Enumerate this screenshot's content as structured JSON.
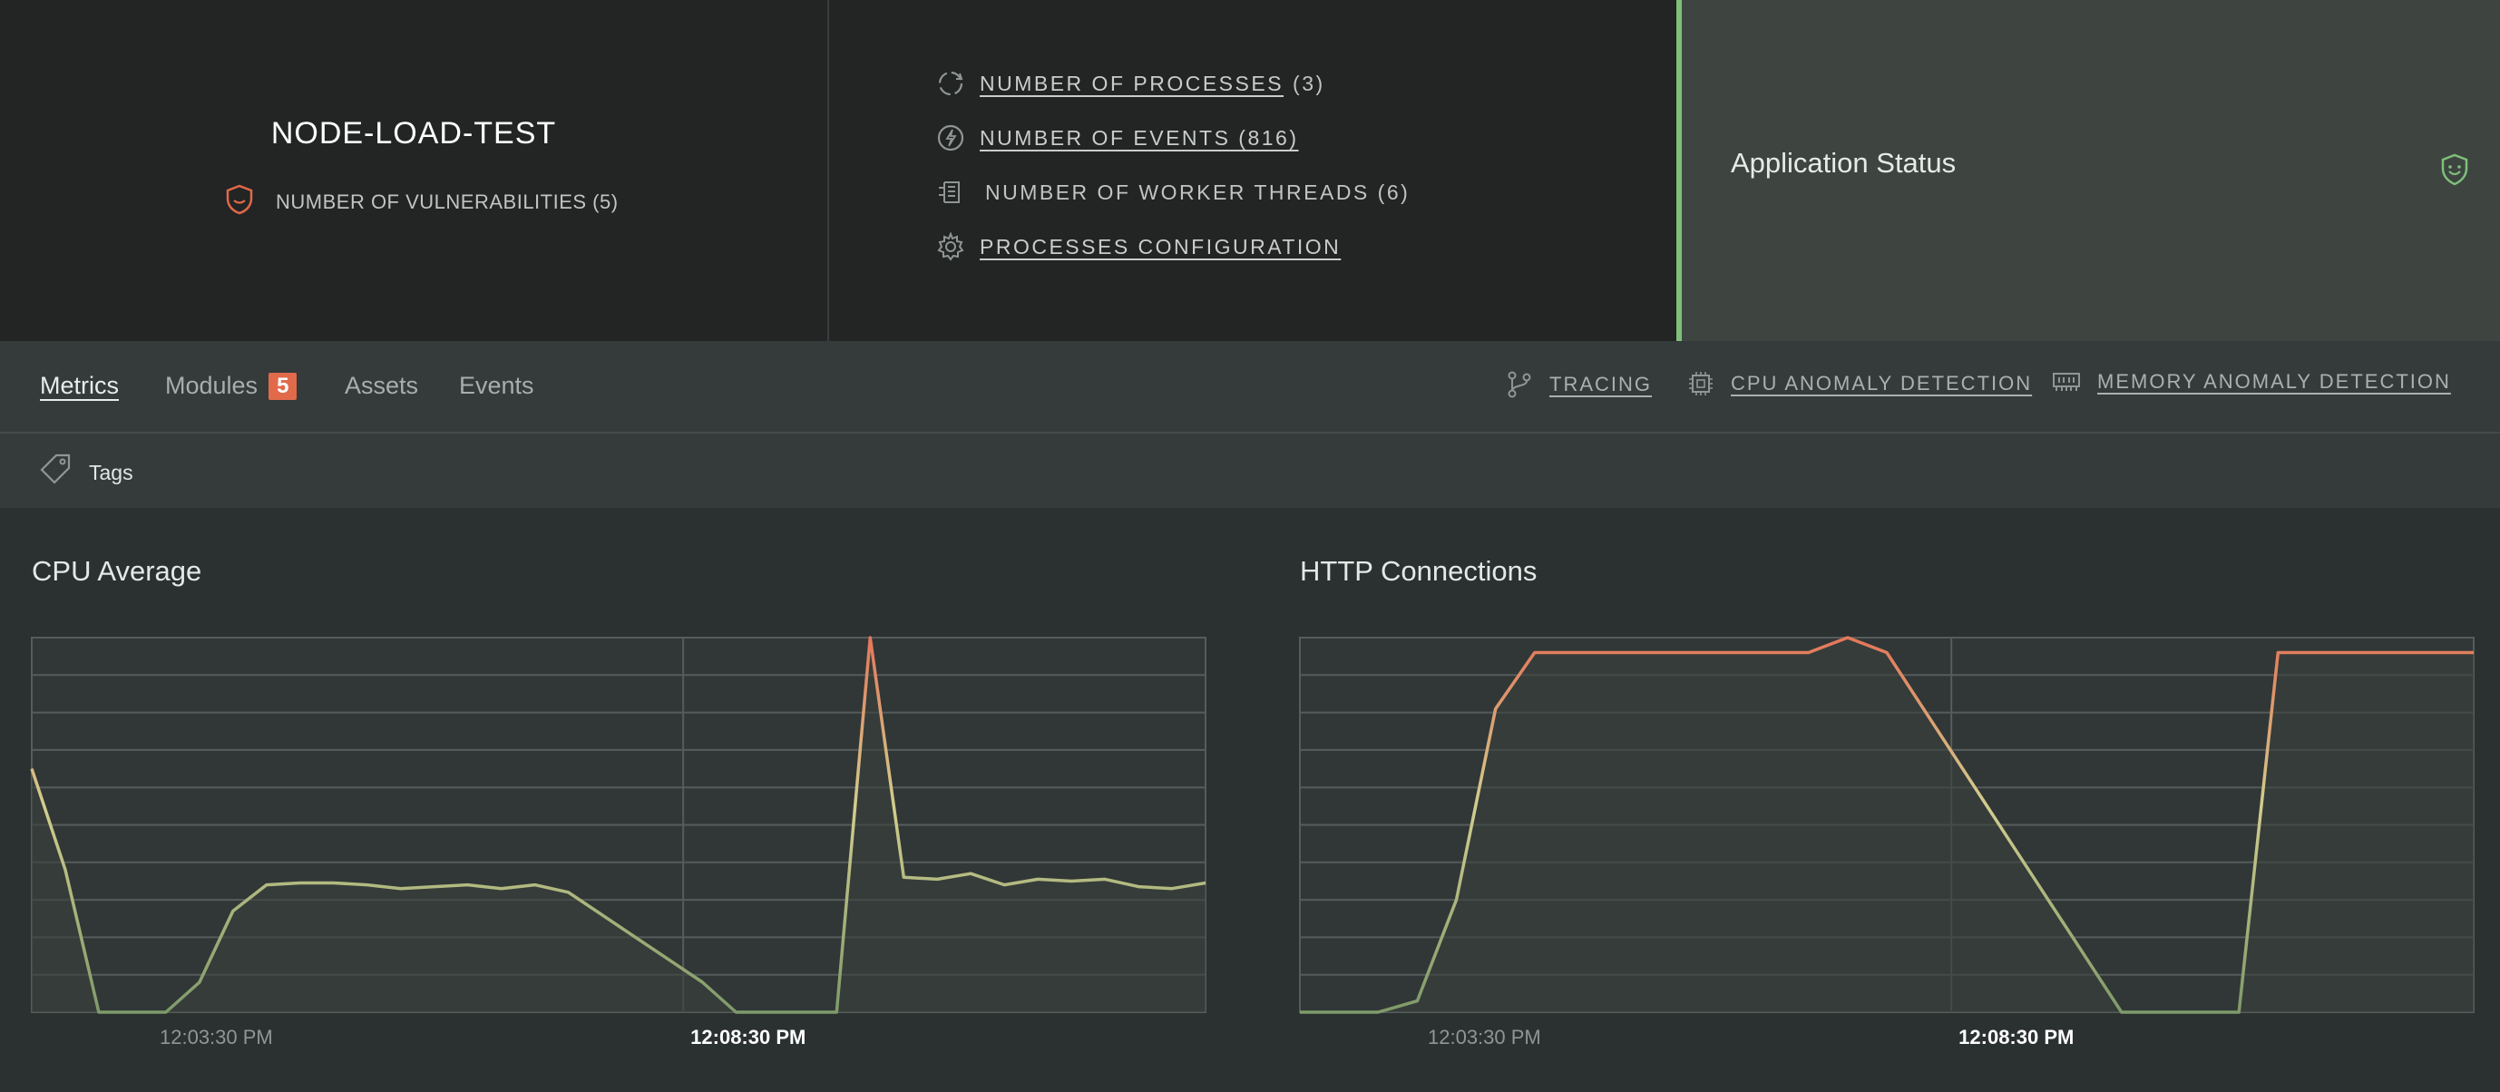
{
  "app": {
    "name": "NODE-LOAD-TEST",
    "vulnerabilities_label": "NUMBER OF VULNERABILITIES (5)"
  },
  "stats": [
    {
      "icon": "processes-icon",
      "label": "NUMBER OF PROCESSES",
      "count": "(3)",
      "link_count": false
    },
    {
      "icon": "lightning-icon",
      "label": "NUMBER OF EVENTS (816)",
      "count": "",
      "link_count": true
    },
    {
      "icon": "threads-icon",
      "label": "NUMBER OF WORKER THREADS (6)",
      "count": "",
      "link_count": false
    },
    {
      "icon": "gear-icon",
      "label": "PROCESSES CONFIGURATION",
      "count": "",
      "link_count": true
    }
  ],
  "status": {
    "title": "Application Status",
    "accent": "#7fbf7a",
    "icon": "shield-face-icon"
  },
  "tabs": [
    {
      "label": "Metrics",
      "active": true
    },
    {
      "label": "Modules",
      "badge": "5",
      "active": false
    },
    {
      "label": "Assets",
      "active": false
    },
    {
      "label": "Events",
      "active": false
    }
  ],
  "tools": [
    {
      "label": "TRACING",
      "icon": "branch-icon"
    },
    {
      "label": "CPU ANOMALY DETECTION",
      "icon": "cpu-chip-icon"
    },
    {
      "label": "MEMORY ANOMALY DETECTION",
      "icon": "memory-icon"
    }
  ],
  "tags": {
    "label": "Tags",
    "icon": "tag-icon"
  },
  "colors": {
    "low": "#7f9a6a",
    "mid": "#d2cd8e",
    "high": "#e4775a",
    "badge": "#e16a4b",
    "vulnerability_icon": "#e0684a"
  },
  "chart_data": [
    {
      "type": "line",
      "title": "CPU Average",
      "x_ticks": [
        {
          "label": "12:03:30 PM",
          "bold": false
        },
        {
          "label": "12:08:30 PM",
          "bold": true
        }
      ],
      "ylim": [
        0,
        100
      ],
      "grid": true,
      "values": [
        65,
        38,
        0,
        0,
        0,
        8,
        27,
        34,
        34.5,
        34.5,
        34,
        33,
        33.5,
        34,
        33,
        34,
        32,
        26,
        20,
        14,
        8,
        0,
        0,
        0,
        0,
        100,
        36,
        35.5,
        37,
        34,
        35.5,
        35,
        35.5,
        33.5,
        33,
        34.5
      ]
    },
    {
      "type": "line",
      "title": "HTTP Connections",
      "x_ticks": [
        {
          "label": "12:03:30 PM",
          "bold": false
        },
        {
          "label": "12:08:30 PM",
          "bold": true
        }
      ],
      "ylim": [
        0,
        100
      ],
      "grid": true,
      "values": [
        0,
        0,
        0,
        3,
        30,
        81,
        96,
        96,
        96,
        96,
        96,
        96,
        96,
        96,
        100,
        96,
        80,
        64,
        48,
        32,
        16,
        0,
        0,
        0,
        0,
        96,
        96,
        96,
        96,
        96,
        96
      ]
    }
  ]
}
